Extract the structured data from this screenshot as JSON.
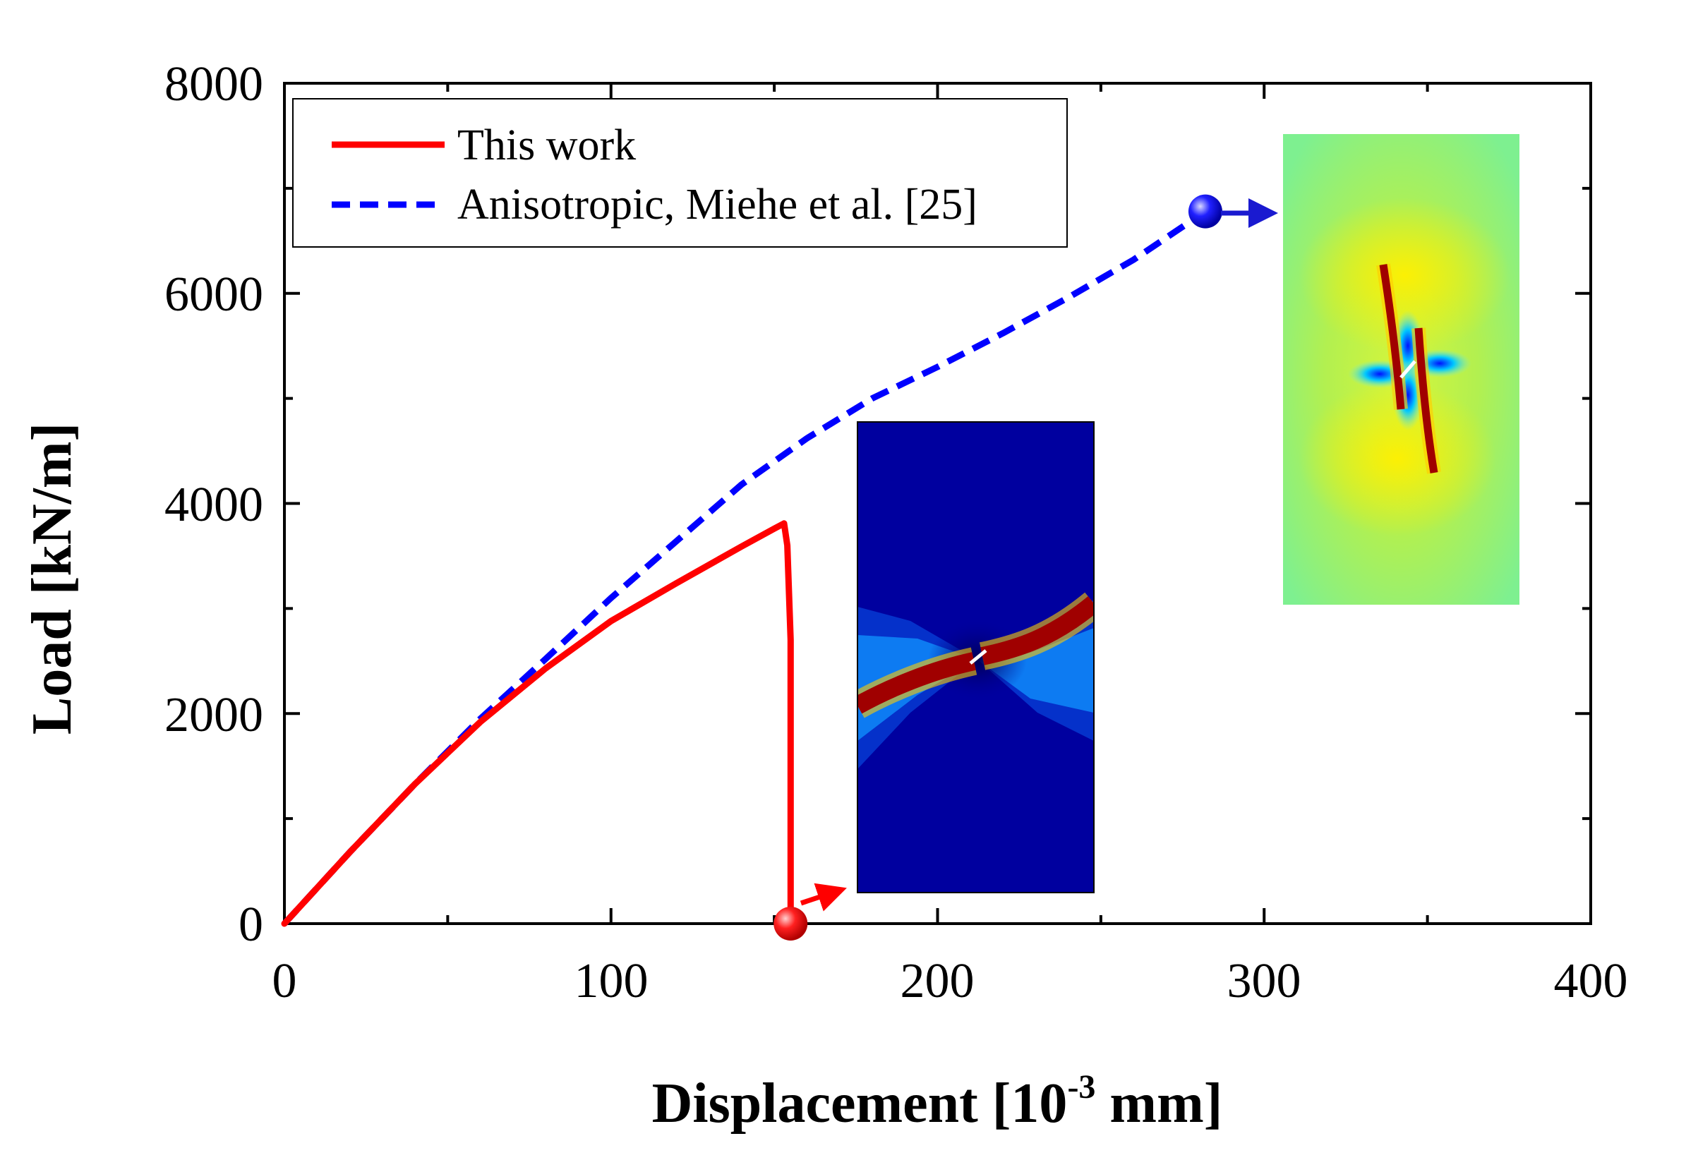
{
  "chart_data": {
    "type": "line",
    "title": "",
    "xlabel": "Displacement [10",
    "xlabel_exponent": "-3",
    "xlabel_unit": " mm]",
    "ylabel": "Load [kN/m]",
    "xlim": [
      0,
      400
    ],
    "ylim": [
      0,
      8000
    ],
    "xticks": [
      0,
      100,
      200,
      300,
      400
    ],
    "yticks": [
      0,
      2000,
      4000,
      6000,
      8000
    ],
    "x_tick_labels": [
      "0",
      "100",
      "200",
      "300",
      "400"
    ],
    "y_tick_labels": [
      "0",
      "2000",
      "4000",
      "6000",
      "8000"
    ],
    "legend_position": "top-left",
    "series": [
      {
        "name": "This work",
        "color": "#ff0000",
        "style": "solid",
        "x": [
          0,
          20,
          40,
          60,
          80,
          100,
          120,
          140,
          150,
          153,
          154,
          155,
          155,
          155
        ],
        "y": [
          0,
          680,
          1330,
          1920,
          2430,
          2880,
          3240,
          3590,
          3760,
          3810,
          3600,
          2700,
          1000,
          0
        ],
        "end_marker": {
          "x": 155,
          "y": 0
        }
      },
      {
        "name": "Anisotropic, Miehe et al. [25]",
        "color": "#0000ff",
        "style": "dashed",
        "x": [
          0,
          20,
          40,
          60,
          80,
          100,
          120,
          140,
          160,
          180,
          200,
          220,
          240,
          260,
          282
        ],
        "y": [
          0,
          680,
          1330,
          1950,
          2520,
          3100,
          3640,
          4180,
          4620,
          5000,
          5300,
          5620,
          5960,
          6320,
          6780
        ],
        "end_marker": {
          "x": 282,
          "y": 6780
        }
      }
    ],
    "insets": [
      {
        "name": "red-curve-damage-field",
        "colormap": "jet",
        "background": "#00009f"
      },
      {
        "name": "blue-curve-damage-field",
        "colormap": "jet",
        "background": "#9ff05a"
      }
    ]
  }
}
